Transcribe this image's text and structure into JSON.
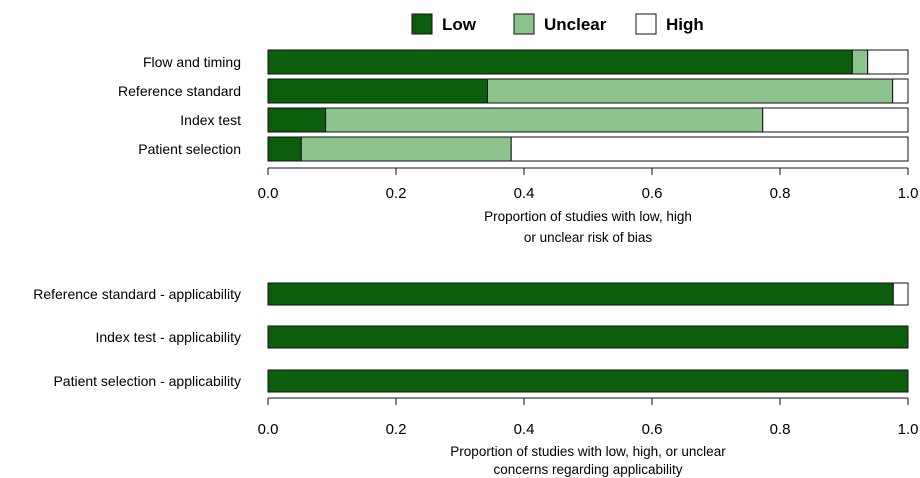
{
  "chart_data": [
    {
      "type": "bar",
      "stacked": true,
      "orientation": "horizontal",
      "categories": [
        "Flow and timing",
        "Reference standard",
        "Index test",
        "Patient selection"
      ],
      "series": [
        {
          "name": "Low",
          "values": [
            0.913,
            0.343,
            0.09,
            0.052
          ]
        },
        {
          "name": "Unclear",
          "values": [
            0.024,
            0.633,
            0.683,
            0.328
          ]
        },
        {
          "name": "High",
          "values": [
            0.063,
            0.024,
            0.227,
            0.62
          ]
        }
      ],
      "xlim": [
        0,
        1
      ],
      "xticks": [
        "0.0",
        "0.2",
        "0.4",
        "0.6",
        "0.8",
        "1.0"
      ],
      "xlabel": [
        "Proportion of studies with low, high",
        "or unclear risk of bias"
      ],
      "legend": "top-center"
    },
    {
      "type": "bar",
      "stacked": true,
      "orientation": "horizontal",
      "categories": [
        "Reference standard - applicability",
        "Index test  - applicability",
        "Patient selection - applicability"
      ],
      "series": [
        {
          "name": "Low",
          "values": [
            0.977,
            1.0,
            1.0
          ]
        },
        {
          "name": "Unclear",
          "values": [
            0,
            0,
            0
          ]
        },
        {
          "name": "High",
          "values": [
            0.023,
            0,
            0
          ]
        }
      ],
      "xlim": [
        0,
        1
      ],
      "xticks": [
        "0.0",
        "0.2",
        "0.4",
        "0.6",
        "0.8",
        "1.0"
      ],
      "xlabel": [
        "Proportion of studies with low, high, or unclear",
        "concerns regarding applicability"
      ]
    }
  ],
  "legend": [
    {
      "label": "Low",
      "color": "#0b5e0b"
    },
    {
      "label": "Unclear",
      "color": "#8dc48d"
    },
    {
      "label": "High",
      "color": "#ffffff"
    }
  ]
}
